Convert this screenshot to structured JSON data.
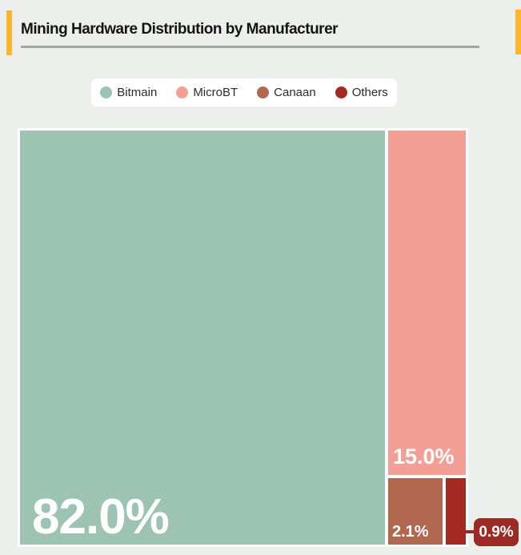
{
  "page": {
    "background_color": "#edefec",
    "accent_bar_color": "#f9b72b"
  },
  "header": {
    "title": "Mining Hardware Distribution by Manufacturer",
    "title_color": "#141414",
    "underline_color": "#a5a5a5"
  },
  "legend": {
    "items": [
      {
        "label": "Bitmain",
        "color": "#9dc3b3"
      },
      {
        "label": "MicroBT",
        "color": "#f49f96"
      },
      {
        "label": "Canaan",
        "color": "#b1684f"
      },
      {
        "label": "Others",
        "color": "#a32b24"
      }
    ]
  },
  "chart_data": {
    "type": "treemap",
    "title": "Mining Hardware Distribution by Manufacturer",
    "unit": "percent share",
    "legend_position": "top",
    "value_label_color": "#ffffff",
    "segments": [
      {
        "name": "Bitmain",
        "value": 82.0,
        "label": "82.0%",
        "color": "#9dc3b3"
      },
      {
        "name": "MicroBT",
        "value": 15.0,
        "label": "15.0%",
        "color": "#f49f96"
      },
      {
        "name": "Canaan",
        "value": 2.1,
        "label": "2.1%",
        "color": "#b1684f"
      },
      {
        "name": "Others",
        "value": 0.9,
        "label": "0.9%",
        "color": "#a32b24"
      }
    ],
    "callout": {
      "segment": "Others",
      "label": "0.9%",
      "box_color": "#9c2a25",
      "text_color": "#ffffff"
    }
  }
}
